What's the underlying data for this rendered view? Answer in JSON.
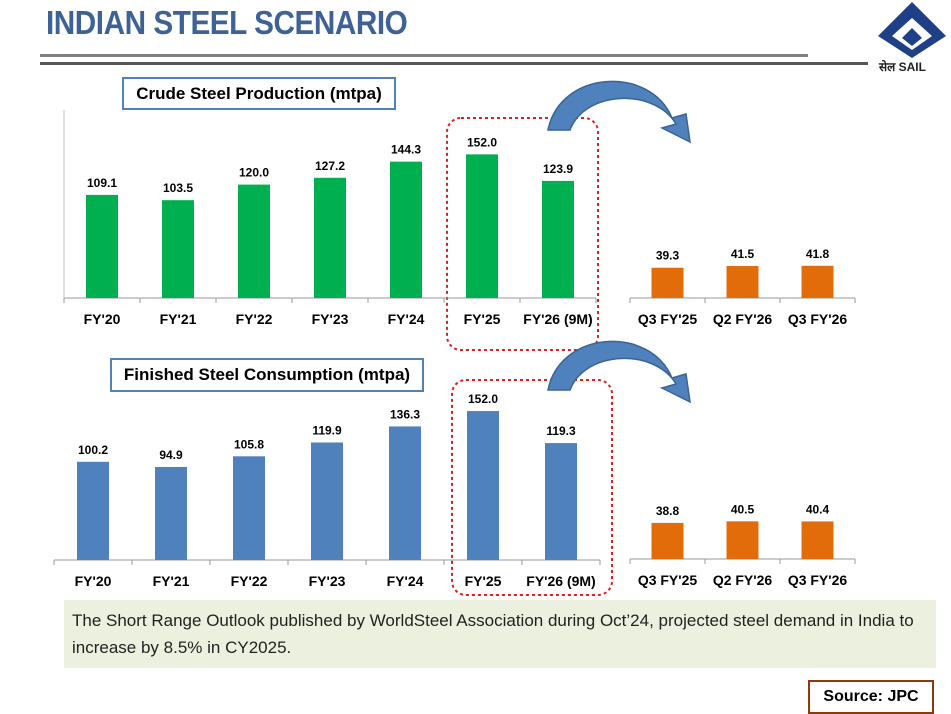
{
  "page": {
    "title": "INDIAN STEEL SCENARIO",
    "logo_text": "सेल SAIL",
    "note": "The Short Range Outlook published by WorldSteel Association during Oct’24, projected steel demand in India to increase by 8.5% in CY2025.",
    "source": "Source: JPC"
  },
  "colors": {
    "green": "#00B050",
    "blue": "#4F81BD",
    "orange": "#E36C0A",
    "title": "#3E6296"
  },
  "chart_data": [
    {
      "type": "bar",
      "title": "Crude Steel Production (mtpa)",
      "categories": [
        "FY'20",
        "FY'21",
        "FY'22",
        "FY'23",
        "FY'24",
        "FY'25",
        "FY'26 (9M)"
      ],
      "values": [
        109.1,
        103.5,
        120.0,
        127.2,
        144.3,
        152.0,
        123.9
      ],
      "labels": [
        "109.1",
        "103.5",
        "120.0",
        "127.2",
        "144.3",
        "152.0",
        "123.9"
      ]
    },
    {
      "type": "bar",
      "title": "",
      "categories": [
        "Q3 FY'25",
        "Q2 FY'26",
        "Q3 FY'26"
      ],
      "values": [
        39.3,
        41.5,
        41.8
      ],
      "labels": [
        "39.3",
        "41.5",
        "41.8"
      ]
    },
    {
      "type": "bar",
      "title": "Finished Steel Consumption (mtpa)",
      "categories": [
        "FY'20",
        "FY'21",
        "FY'22",
        "FY'23",
        "FY'24",
        "FY'25",
        "FY'26 (9M)"
      ],
      "values": [
        100.2,
        94.9,
        105.8,
        119.9,
        136.3,
        152.0,
        119.3
      ],
      "labels": [
        "100.2",
        "94.9",
        "105.8",
        "119.9",
        "136.3",
        "152.0",
        "119.3"
      ]
    },
    {
      "type": "bar",
      "title": "",
      "categories": [
        "Q3 FY'25",
        "Q2 FY'26",
        "Q3 FY'26"
      ],
      "values": [
        38.8,
        40.5,
        40.4
      ],
      "labels": [
        "38.8",
        "40.5",
        "40.4"
      ]
    }
  ]
}
